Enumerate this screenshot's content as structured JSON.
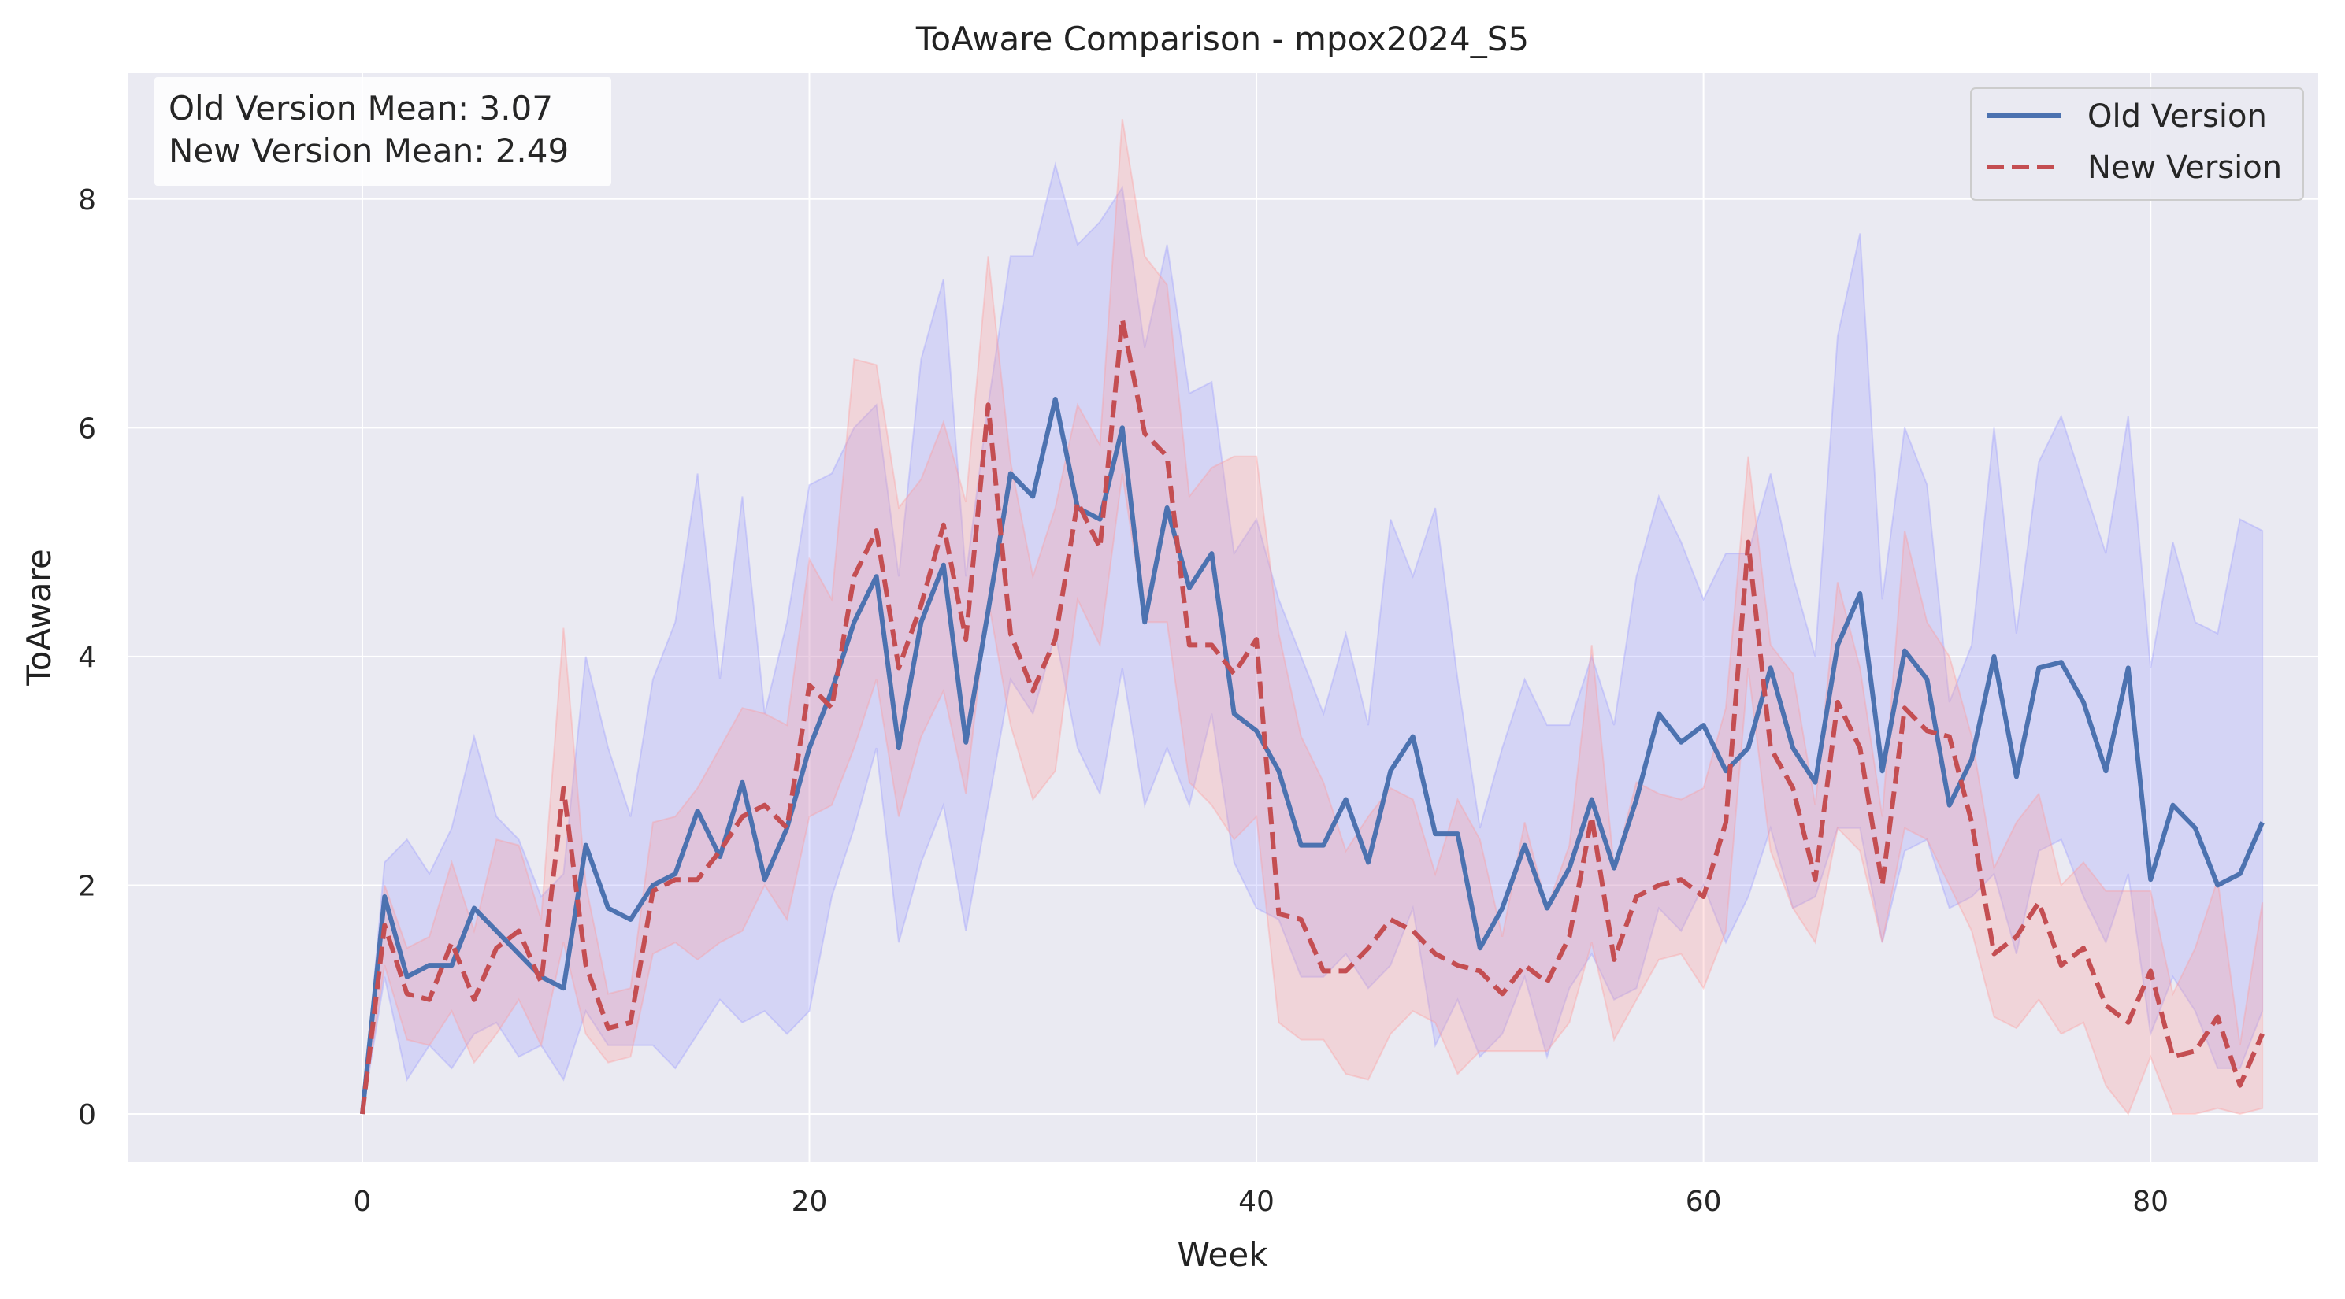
{
  "chart_data": {
    "type": "line",
    "title": "ToAware Comparison - mpox2024_S5",
    "xlabel": "Week",
    "ylabel": "ToAware",
    "xlim": [
      -10.5,
      87.5
    ],
    "ylim": [
      -0.42,
      9.1
    ],
    "xticks": [
      0,
      20,
      40,
      60,
      80
    ],
    "yticks": [
      0,
      2,
      4,
      6,
      8
    ],
    "grid": true,
    "legend_position": "upper right",
    "annotation_lines": [
      "Old Version Mean: 3.07",
      "New Version Mean: 2.49"
    ],
    "series": [
      {
        "name": "Old Version",
        "color": "#4c72b0",
        "band_color": "#9999ff",
        "linestyle": "solid",
        "x": [
          0,
          1,
          2,
          3,
          4,
          5,
          6,
          7,
          8,
          9,
          10,
          11,
          12,
          13,
          14,
          15,
          16,
          17,
          18,
          19,
          20,
          21,
          22,
          23,
          24,
          25,
          26,
          27,
          28,
          29,
          30,
          31,
          32,
          33,
          34,
          35,
          36,
          37,
          38,
          39,
          40,
          41,
          42,
          43,
          44,
          45,
          46,
          47,
          48,
          49,
          50,
          51,
          52,
          53,
          54,
          55,
          56,
          57,
          58,
          59,
          60,
          61,
          62,
          63,
          64,
          65,
          66,
          67,
          68,
          69,
          70,
          71,
          72,
          73,
          74,
          75,
          76,
          77,
          78,
          79,
          80,
          81,
          82,
          83,
          84,
          85
        ],
        "values": [
          0,
          1.9,
          1.2,
          1.3,
          1.3,
          1.8,
          1.6,
          1.4,
          1.2,
          1.1,
          2.35,
          1.8,
          1.7,
          2.0,
          2.1,
          2.65,
          2.25,
          2.9,
          2.05,
          2.5,
          3.2,
          3.7,
          4.3,
          4.7,
          3.2,
          4.3,
          4.8,
          3.25,
          4.4,
          5.6,
          5.4,
          6.25,
          5.3,
          5.2,
          6.0,
          4.3,
          5.3,
          4.6,
          4.9,
          3.5,
          3.35,
          3.0,
          2.35,
          2.35,
          2.75,
          2.2,
          3.0,
          3.3,
          2.45,
          2.45,
          1.45,
          1.8,
          2.35,
          1.8,
          2.15,
          2.75,
          2.15,
          2.75,
          3.5,
          3.25,
          3.4,
          3.0,
          3.2,
          3.9,
          3.2,
          2.9,
          4.1,
          4.55,
          3.0,
          4.05,
          3.8,
          2.7,
          3.1,
          4.0,
          2.95,
          3.9,
          3.95,
          3.6,
          3.0,
          3.9,
          2.05,
          2.7,
          2.5,
          2.0,
          2.1,
          2.55
        ],
        "lower": [
          0,
          1.2,
          0.3,
          0.6,
          0.4,
          0.7,
          0.8,
          0.5,
          0.6,
          0.3,
          0.9,
          0.6,
          0.6,
          0.6,
          0.4,
          0.7,
          1.0,
          0.8,
          0.9,
          0.7,
          0.9,
          1.9,
          2.5,
          3.2,
          1.5,
          2.2,
          2.7,
          1.6,
          2.7,
          3.8,
          3.5,
          4.2,
          3.2,
          2.8,
          3.9,
          2.7,
          3.2,
          2.7,
          3.5,
          2.2,
          1.8,
          1.7,
          1.2,
          1.2,
          1.4,
          1.1,
          1.3,
          1.8,
          0.6,
          1.0,
          0.5,
          0.7,
          1.2,
          0.5,
          1.1,
          1.4,
          1.0,
          1.1,
          1.8,
          1.6,
          2.0,
          1.5,
          1.9,
          2.5,
          1.8,
          1.9,
          2.5,
          2.5,
          1.5,
          2.3,
          2.4,
          1.8,
          1.9,
          2.1,
          1.4,
          2.3,
          2.4,
          1.9,
          1.5,
          2.1,
          0.7,
          1.2,
          0.9,
          0.4,
          0.4,
          0.9
        ],
        "upper": [
          0,
          2.2,
          2.4,
          2.1,
          2.5,
          3.3,
          2.6,
          2.4,
          1.9,
          2.1,
          4.0,
          3.2,
          2.6,
          3.8,
          4.3,
          5.6,
          3.8,
          5.4,
          3.5,
          4.3,
          5.5,
          5.6,
          6.0,
          6.2,
          4.7,
          6.6,
          7.3,
          4.7,
          6.2,
          7.5,
          7.5,
          8.3,
          7.6,
          7.8,
          8.1,
          6.7,
          7.6,
          6.3,
          6.4,
          4.9,
          5.2,
          4.5,
          4.0,
          3.5,
          4.2,
          3.4,
          5.2,
          4.7,
          5.3,
          3.8,
          2.5,
          3.2,
          3.8,
          3.4,
          3.4,
          4.0,
          3.4,
          4.7,
          5.4,
          5.0,
          4.5,
          4.9,
          4.9,
          5.6,
          4.7,
          4.0,
          6.8,
          7.7,
          4.5,
          6.0,
          5.5,
          3.6,
          4.1,
          6.0,
          4.2,
          5.7,
          6.1,
          5.5,
          4.9,
          6.1,
          3.9,
          5.0,
          4.3,
          4.2,
          5.2,
          5.1
        ]
      },
      {
        "name": "New Version",
        "color": "#c44e52",
        "band_color": "#ff9999",
        "linestyle": "dashed",
        "x": [
          0,
          1,
          2,
          3,
          4,
          5,
          6,
          7,
          8,
          9,
          10,
          11,
          12,
          13,
          14,
          15,
          16,
          17,
          18,
          19,
          20,
          21,
          22,
          23,
          24,
          25,
          26,
          27,
          28,
          29,
          30,
          31,
          32,
          33,
          34,
          35,
          36,
          37,
          38,
          39,
          40,
          41,
          42,
          43,
          44,
          45,
          46,
          47,
          48,
          49,
          50,
          51,
          52,
          53,
          54,
          55,
          56,
          57,
          58,
          59,
          60,
          61,
          62,
          63,
          64,
          65,
          66,
          67,
          68,
          69,
          70,
          71,
          72,
          73,
          74,
          75,
          76,
          77,
          78,
          79,
          80,
          81,
          82,
          83,
          84,
          85
        ],
        "values": [
          0,
          1.65,
          1.05,
          1.0,
          1.5,
          1.0,
          1.45,
          1.6,
          1.15,
          2.85,
          1.3,
          0.75,
          0.8,
          1.95,
          2.05,
          2.05,
          2.3,
          2.6,
          2.7,
          2.5,
          3.75,
          3.55,
          4.7,
          5.1,
          3.9,
          4.45,
          5.15,
          4.15,
          6.2,
          4.2,
          3.7,
          4.15,
          5.35,
          4.95,
          6.95,
          5.95,
          5.75,
          4.1,
          4.1,
          3.85,
          4.15,
          1.75,
          1.7,
          1.25,
          1.25,
          1.45,
          1.7,
          1.6,
          1.4,
          1.3,
          1.25,
          1.05,
          1.3,
          1.15,
          1.55,
          2.6,
          1.35,
          1.9,
          2.0,
          2.05,
          1.9,
          2.55,
          5.0,
          3.2,
          2.85,
          2.05,
          3.6,
          3.2,
          2.0,
          3.55,
          3.35,
          3.3,
          2.55,
          1.4,
          1.55,
          1.85,
          1.3,
          1.45,
          0.95,
          0.8,
          1.25,
          0.5,
          0.55,
          0.85,
          0.25,
          0.7
        ],
        "lower": [
          0,
          1.3,
          0.65,
          0.6,
          0.9,
          0.45,
          0.7,
          1.0,
          0.6,
          1.5,
          0.7,
          0.45,
          0.5,
          1.4,
          1.5,
          1.35,
          1.5,
          1.6,
          2.0,
          1.7,
          2.6,
          2.7,
          3.2,
          3.8,
          2.6,
          3.3,
          3.7,
          2.8,
          4.5,
          3.4,
          2.75,
          3.0,
          4.5,
          4.1,
          5.6,
          4.3,
          4.3,
          2.9,
          2.7,
          2.4,
          2.6,
          0.8,
          0.65,
          0.65,
          0.35,
          0.3,
          0.7,
          0.9,
          0.8,
          0.35,
          0.55,
          0.55,
          0.55,
          0.55,
          0.8,
          1.5,
          0.65,
          1.0,
          1.35,
          1.4,
          1.1,
          1.6,
          3.9,
          2.3,
          1.8,
          1.5,
          2.5,
          2.3,
          1.5,
          2.5,
          2.4,
          2.0,
          1.6,
          0.85,
          0.75,
          1.0,
          0.7,
          0.8,
          0.25,
          0.0,
          0.5,
          0.0,
          0.0,
          0.05,
          0.0,
          0.05
        ],
        "upper": [
          0,
          2.0,
          1.45,
          1.55,
          2.2,
          1.6,
          2.4,
          2.35,
          1.7,
          4.25,
          2.0,
          1.05,
          1.1,
          2.55,
          2.6,
          2.85,
          3.2,
          3.55,
          3.5,
          3.4,
          4.85,
          4.5,
          6.6,
          6.55,
          5.3,
          5.55,
          6.05,
          5.35,
          7.5,
          5.7,
          4.7,
          5.3,
          6.2,
          5.85,
          8.7,
          7.5,
          7.25,
          5.4,
          5.65,
          5.75,
          5.75,
          4.2,
          3.3,
          2.9,
          2.3,
          2.6,
          2.85,
          2.75,
          2.1,
          2.75,
          2.4,
          1.55,
          2.55,
          1.8,
          2.35,
          4.1,
          2.15,
          2.9,
          2.8,
          2.75,
          2.85,
          3.55,
          5.75,
          4.1,
          3.85,
          2.7,
          4.65,
          3.9,
          2.6,
          5.1,
          4.3,
          4.0,
          3.3,
          2.15,
          2.55,
          2.8,
          2.0,
          2.2,
          1.95,
          1.95,
          1.95,
          1.05,
          1.45,
          2.05,
          0.6,
          1.85
        ]
      }
    ]
  }
}
